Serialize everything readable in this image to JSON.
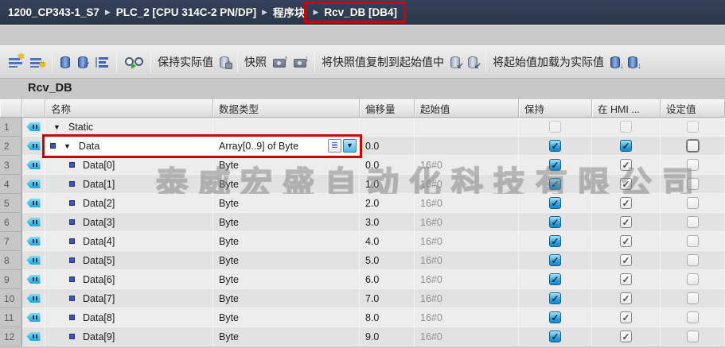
{
  "breadcrumb": {
    "items": [
      "1200_CP343-1_S7",
      "PLC_2 [CPU 314C-2 PN/DP]",
      "程序块",
      "Rcv_DB [DB4]"
    ],
    "separator": "▶"
  },
  "toolbar": {
    "keep_actual_label": "保持实际值",
    "snapshot_label": "快照",
    "copy_snapshot_label": "将快照值复制到起始值中",
    "load_start_label": "将起始值加载为实际值"
  },
  "block": {
    "title": "Rcv_DB"
  },
  "icons": {
    "expander": "▼",
    "list_glyph": "≣",
    "dropdown_glyph": "▼"
  },
  "watermark": {
    "text": "泰威宏盛自动化科技有限公司"
  },
  "colors": {
    "accent_red": "#d40000",
    "navy_bar": "#2e3a4e",
    "checked_blue": "#2da2dd"
  },
  "table": {
    "headers": {
      "name": "名称",
      "type": "数据类型",
      "offset": "偏移量",
      "start": "起始值",
      "retain": "保持",
      "hmi": "在 HMI ...",
      "setpoint": "设定值"
    },
    "rows": [
      {
        "num": "1",
        "name": "Static",
        "indent": 0,
        "expander": true,
        "marker": false,
        "type": "",
        "type_buttons": false,
        "offset": "",
        "start": "",
        "retain": "dis",
        "hmi": "dis",
        "setpoint": "dis",
        "selected": false,
        "redbox": false
      },
      {
        "num": "2",
        "name": "Data",
        "indent": 1,
        "expander": true,
        "marker": true,
        "type": "Array[0..9] of Byte",
        "type_buttons": true,
        "offset": "0.0",
        "start": "",
        "retain": "blue",
        "hmi": "blue",
        "setpoint": "off-focus",
        "selected": true,
        "redbox": true
      },
      {
        "num": "3",
        "name": "Data[0]",
        "indent": 2,
        "expander": false,
        "marker": true,
        "type": "Byte",
        "type_buttons": false,
        "offset": "0.0",
        "start": "16#0",
        "retain": "blue",
        "hmi": "gray",
        "setpoint": "off",
        "selected": false,
        "redbox": false
      },
      {
        "num": "4",
        "name": "Data[1]",
        "indent": 2,
        "expander": false,
        "marker": true,
        "type": "Byte",
        "type_buttons": false,
        "offset": "1.0",
        "start": "16#0",
        "retain": "blue",
        "hmi": "gray",
        "setpoint": "off",
        "selected": false,
        "redbox": false
      },
      {
        "num": "5",
        "name": "Data[2]",
        "indent": 2,
        "expander": false,
        "marker": true,
        "type": "Byte",
        "type_buttons": false,
        "offset": "2.0",
        "start": "16#0",
        "retain": "blue",
        "hmi": "gray",
        "setpoint": "off",
        "selected": false,
        "redbox": false
      },
      {
        "num": "6",
        "name": "Data[3]",
        "indent": 2,
        "expander": false,
        "marker": true,
        "type": "Byte",
        "type_buttons": false,
        "offset": "3.0",
        "start": "16#0",
        "retain": "blue",
        "hmi": "gray",
        "setpoint": "off",
        "selected": false,
        "redbox": false
      },
      {
        "num": "7",
        "name": "Data[4]",
        "indent": 2,
        "expander": false,
        "marker": true,
        "type": "Byte",
        "type_buttons": false,
        "offset": "4.0",
        "start": "16#0",
        "retain": "blue",
        "hmi": "gray",
        "setpoint": "off",
        "selected": false,
        "redbox": false
      },
      {
        "num": "8",
        "name": "Data[5]",
        "indent": 2,
        "expander": false,
        "marker": true,
        "type": "Byte",
        "type_buttons": false,
        "offset": "5.0",
        "start": "16#0",
        "retain": "blue",
        "hmi": "gray",
        "setpoint": "off",
        "selected": false,
        "redbox": false
      },
      {
        "num": "9",
        "name": "Data[6]",
        "indent": 2,
        "expander": false,
        "marker": true,
        "type": "Byte",
        "type_buttons": false,
        "offset": "6.0",
        "start": "16#0",
        "retain": "blue",
        "hmi": "gray",
        "setpoint": "off",
        "selected": false,
        "redbox": false
      },
      {
        "num": "10",
        "name": "Data[7]",
        "indent": 2,
        "expander": false,
        "marker": true,
        "type": "Byte",
        "type_buttons": false,
        "offset": "7.0",
        "start": "16#0",
        "retain": "blue",
        "hmi": "gray",
        "setpoint": "off",
        "selected": false,
        "redbox": false
      },
      {
        "num": "11",
        "name": "Data[8]",
        "indent": 2,
        "expander": false,
        "marker": true,
        "type": "Byte",
        "type_buttons": false,
        "offset": "8.0",
        "start": "16#0",
        "retain": "blue",
        "hmi": "gray",
        "setpoint": "off",
        "selected": false,
        "redbox": false
      },
      {
        "num": "12",
        "name": "Data[9]",
        "indent": 2,
        "expander": false,
        "marker": true,
        "type": "Byte",
        "type_buttons": false,
        "offset": "9.0",
        "start": "16#0",
        "retain": "blue",
        "hmi": "gray",
        "setpoint": "off",
        "selected": false,
        "redbox": false
      }
    ]
  }
}
